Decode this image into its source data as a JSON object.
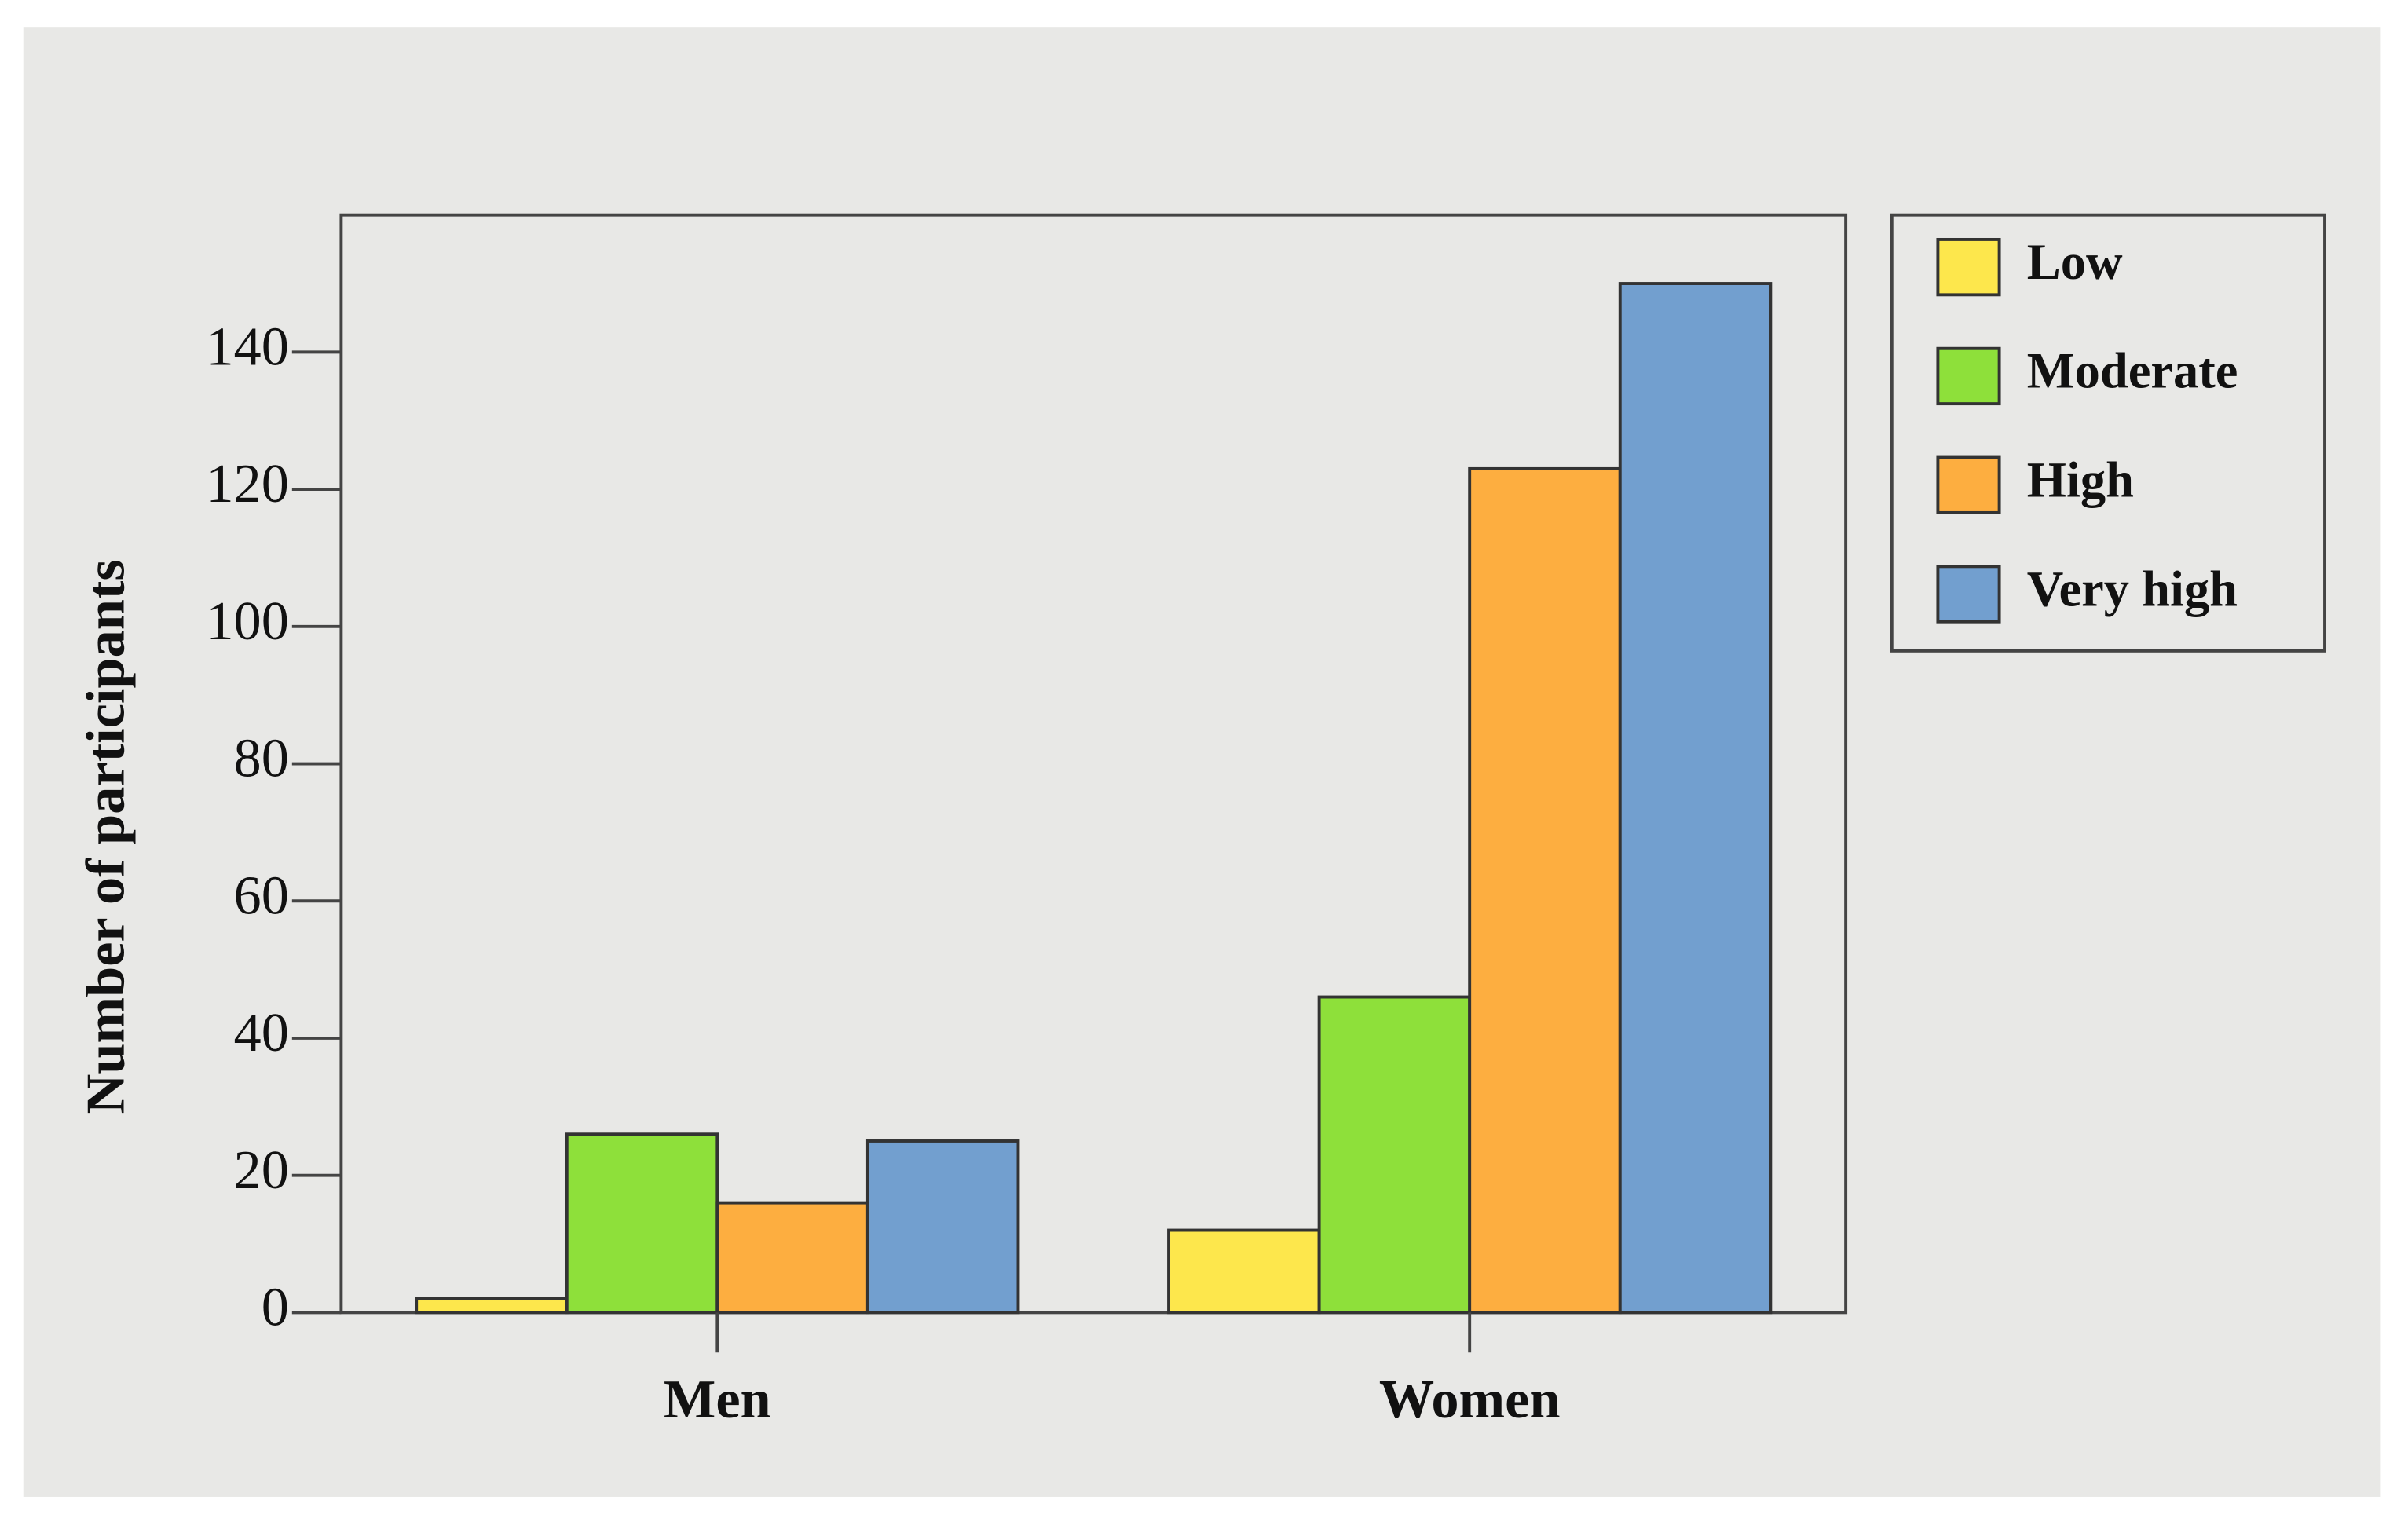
{
  "chart_data": {
    "type": "bar",
    "y_label": "Number of participants",
    "categories": [
      "Men",
      "Women"
    ],
    "series": [
      {
        "name": "Low",
        "color": "#fde74c",
        "values": [
          2,
          12
        ]
      },
      {
        "name": "Moderate",
        "color": "#8ee03a",
        "values": [
          26,
          46
        ]
      },
      {
        "name": "High",
        "color": "#fdae40",
        "values": [
          16,
          123
        ]
      },
      {
        "name": "Very high",
        "color": "#729fcf",
        "values": [
          25,
          150
        ]
      }
    ],
    "ylim": [
      0,
      160
    ],
    "yticks": [
      0,
      20,
      40,
      60,
      80,
      100,
      120,
      140
    ],
    "grid": false,
    "legend": "right"
  }
}
